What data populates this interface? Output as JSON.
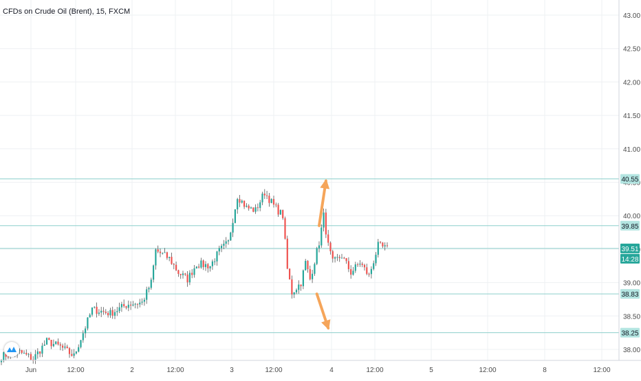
{
  "header": {
    "title": "CFDs on Crude Oil (Brent), 15, FXCM"
  },
  "colors": {
    "up": "#26a69a",
    "down": "#ef5350",
    "wick": "#555555",
    "hline": "#8ccfcb",
    "price_label_bg": "#b3e5e1",
    "current_label_bg": "#26a69a",
    "arrow": "#f5a55a",
    "grid": "#eef0f3"
  },
  "chart_data": {
    "type": "candlestick",
    "ylim": [
      37.8,
      43.1
    ],
    "y_ticks": [
      "43.00",
      "42.50",
      "42.00",
      "41.50",
      "41.00",
      "40.50",
      "40.00",
      "39.50",
      "39.00",
      "38.50",
      "38.00"
    ],
    "x_ticks": [
      "Jun",
      "12:00",
      "2",
      "12:00",
      "3",
      "12:00",
      "4",
      "12:00",
      "5",
      "12:00",
      "8",
      "12:00"
    ],
    "price_lines": [
      {
        "label": "40.55",
        "value": 40.55
      },
      {
        "label": "39.85",
        "value": 39.85
      },
      {
        "label": "38.83",
        "value": 38.83
      },
      {
        "label": "38.25",
        "value": 38.25
      }
    ],
    "current": {
      "label": "39.51",
      "value": 39.51,
      "countdown": "14:28"
    },
    "anchors": [
      [
        0,
        37.9
      ],
      [
        8,
        37.96
      ],
      [
        14,
        37.86
      ],
      [
        20,
        38.12
      ],
      [
        26,
        38.04
      ],
      [
        32,
        37.9
      ],
      [
        40,
        38.6
      ],
      [
        48,
        38.54
      ],
      [
        56,
        38.68
      ],
      [
        62,
        38.7
      ],
      [
        66,
        39.0
      ],
      [
        68,
        39.48
      ],
      [
        74,
        39.36
      ],
      [
        78,
        39.15
      ],
      [
        82,
        39.05
      ],
      [
        86,
        39.28
      ],
      [
        92,
        39.25
      ],
      [
        96,
        39.47
      ],
      [
        100,
        39.6
      ],
      [
        104,
        40.3
      ],
      [
        108,
        40.12
      ],
      [
        112,
        40.08
      ],
      [
        116,
        40.35
      ],
      [
        120,
        40.15
      ],
      [
        124,
        40.0
      ],
      [
        126,
        39.2
      ],
      [
        128,
        38.85
      ],
      [
        132,
        39.0
      ],
      [
        134,
        39.3
      ],
      [
        136,
        39.05
      ],
      [
        140,
        39.6
      ],
      [
        142,
        40.0
      ],
      [
        144,
        39.55
      ],
      [
        146,
        39.3
      ],
      [
        150,
        39.4
      ],
      [
        154,
        39.15
      ],
      [
        158,
        39.3
      ],
      [
        162,
        39.1
      ],
      [
        166,
        39.55
      ],
      [
        170,
        39.5
      ]
    ],
    "arrows": [
      {
        "direction": "up",
        "from": [
          140,
          39.85
        ],
        "to": [
          143,
          40.52
        ]
      },
      {
        "direction": "down",
        "from": [
          139,
          38.83
        ],
        "to": [
          144,
          38.32
        ]
      }
    ],
    "candle_count": 171
  }
}
